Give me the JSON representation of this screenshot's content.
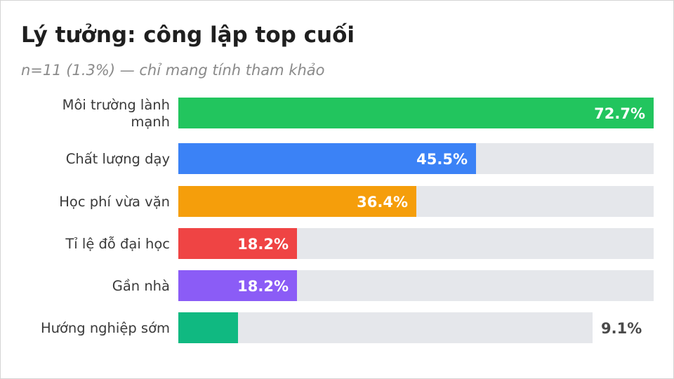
{
  "chart_data": {
    "type": "bar",
    "orientation": "horizontal",
    "title": "Lý tưởng: công lập top cuối",
    "subtitle": "n=11 (1.3%) — chỉ mang tính tham khảo",
    "categories": [
      [
        "Môi trường lành",
        "mạnh"
      ],
      [
        "Chất lượng dạy"
      ],
      [
        "Học phí vừa vặn"
      ],
      [
        "Tỉ lệ đỗ đại học"
      ],
      [
        "Gần nhà"
      ],
      [
        "Hướng nghiệp sớm"
      ]
    ],
    "values": [
      72.7,
      45.5,
      36.4,
      18.2,
      18.2,
      9.1
    ],
    "value_labels": [
      "72.7%",
      "45.5%",
      "36.4%",
      "18.2%",
      "18.2%",
      "9.1%"
    ],
    "colors": [
      "#22c55e",
      "#3b82f6",
      "#f59e0b",
      "#ef4444",
      "#8b5cf6",
      "#10b981"
    ],
    "track_color": "#e5e7eb",
    "xlim": [
      0,
      72.7
    ],
    "grid": false,
    "legend": "none"
  }
}
